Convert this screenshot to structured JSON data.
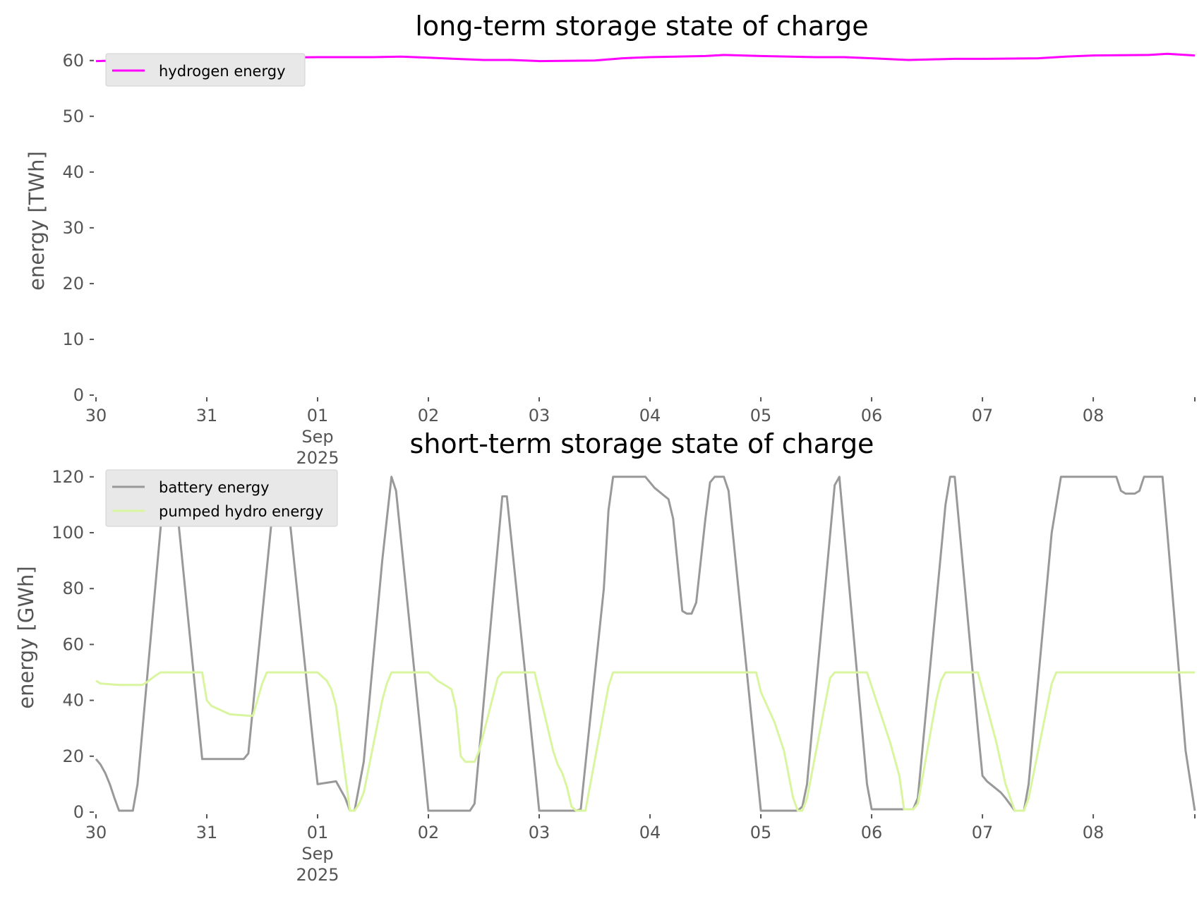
{
  "chart_data": [
    {
      "type": "line",
      "title": "long-term storage state of charge",
      "ylabel": "energy [TWh]",
      "xlabel": "",
      "ylim": [
        0,
        62.5
      ],
      "xlim": [
        "2025-08-30T00:00",
        "2025-09-08T22:00"
      ],
      "yticks": [
        0,
        10,
        20,
        30,
        40,
        50,
        60
      ],
      "xticks": [
        {
          "date": "2025-08-30",
          "label": "30",
          "sub": []
        },
        {
          "date": "2025-08-31",
          "label": "31",
          "sub": []
        },
        {
          "date": "2025-09-01",
          "label": "01",
          "sub": [
            "Sep",
            "2025"
          ]
        },
        {
          "date": "2025-09-02",
          "label": "02",
          "sub": []
        },
        {
          "date": "2025-09-03",
          "label": "03",
          "sub": []
        },
        {
          "date": "2025-09-04",
          "label": "04",
          "sub": []
        },
        {
          "date": "2025-09-05",
          "label": "05",
          "sub": []
        },
        {
          "date": "2025-09-06",
          "label": "06",
          "sub": []
        },
        {
          "date": "2025-09-07",
          "label": "07",
          "sub": []
        },
        {
          "date": "2025-09-08",
          "label": "08",
          "sub": []
        }
      ],
      "grid": false,
      "legend": {
        "position": "top-left"
      },
      "series": [
        {
          "name": "hydrogen energy",
          "color": "#ff00ff",
          "points": [
            [
              "2025-08-30T00:00",
              59.9
            ],
            [
              "2025-08-30T12:00",
              60.2
            ],
            [
              "2025-08-31T00:00",
              60.4
            ],
            [
              "2025-08-31T12:00",
              60.5
            ],
            [
              "2025-09-01T00:00",
              60.6
            ],
            [
              "2025-09-01T12:00",
              60.6
            ],
            [
              "2025-09-01T18:00",
              60.7
            ],
            [
              "2025-09-02T00:00",
              60.5
            ],
            [
              "2025-09-02T12:00",
              60.1
            ],
            [
              "2025-09-02T18:00",
              60.1
            ],
            [
              "2025-09-03T00:00",
              59.9
            ],
            [
              "2025-09-03T12:00",
              60.0
            ],
            [
              "2025-09-03T18:00",
              60.4
            ],
            [
              "2025-09-04T00:00",
              60.6
            ],
            [
              "2025-09-04T12:00",
              60.8
            ],
            [
              "2025-09-04T16:00",
              61.0
            ],
            [
              "2025-09-05T00:00",
              60.8
            ],
            [
              "2025-09-05T12:00",
              60.6
            ],
            [
              "2025-09-05T18:00",
              60.6
            ],
            [
              "2025-09-06T00:00",
              60.4
            ],
            [
              "2025-09-06T08:00",
              60.1
            ],
            [
              "2025-09-06T18:00",
              60.3
            ],
            [
              "2025-09-07T00:00",
              60.3
            ],
            [
              "2025-09-07T12:00",
              60.4
            ],
            [
              "2025-09-07T18:00",
              60.7
            ],
            [
              "2025-09-08T00:00",
              60.9
            ],
            [
              "2025-09-08T12:00",
              61.0
            ],
            [
              "2025-09-08T16:00",
              61.2
            ],
            [
              "2025-09-08T22:00",
              60.9
            ]
          ]
        }
      ]
    },
    {
      "type": "line",
      "title": "short-term storage state of charge",
      "ylabel": "energy [GWh]",
      "xlabel": "",
      "ylim": [
        0,
        125
      ],
      "xlim": [
        "2025-08-30T00:00",
        "2025-09-08T22:00"
      ],
      "yticks": [
        0,
        20,
        40,
        60,
        80,
        100,
        120
      ],
      "xticks": [
        {
          "date": "2025-08-30",
          "label": "30",
          "sub": []
        },
        {
          "date": "2025-08-31",
          "label": "31",
          "sub": []
        },
        {
          "date": "2025-09-01",
          "label": "01",
          "sub": [
            "Sep",
            "2025"
          ]
        },
        {
          "date": "2025-09-02",
          "label": "02",
          "sub": []
        },
        {
          "date": "2025-09-03",
          "label": "03",
          "sub": []
        },
        {
          "date": "2025-09-04",
          "label": "04",
          "sub": []
        },
        {
          "date": "2025-09-05",
          "label": "05",
          "sub": []
        },
        {
          "date": "2025-09-06",
          "label": "06",
          "sub": []
        },
        {
          "date": "2025-09-07",
          "label": "07",
          "sub": []
        },
        {
          "date": "2025-09-08",
          "label": "08",
          "sub": []
        }
      ],
      "grid": false,
      "legend": {
        "position": "top-left"
      },
      "series": [
        {
          "name": "battery energy",
          "color": "#999999",
          "points": [
            [
              "2025-08-30T00:00",
              19
            ],
            [
              "2025-08-30T01:00",
              17
            ],
            [
              "2025-08-30T02:00",
              14
            ],
            [
              "2025-08-30T03:00",
              10
            ],
            [
              "2025-08-30T04:00",
              5
            ],
            [
              "2025-08-30T05:00",
              0.5
            ],
            [
              "2025-08-30T08:00",
              0.5
            ],
            [
              "2025-08-30T09:00",
              10
            ],
            [
              "2025-08-30T15:00",
              120
            ],
            [
              "2025-08-30T17:00",
              118
            ],
            [
              "2025-08-30T23:00",
              19
            ],
            [
              "2025-08-31T08:00",
              19
            ],
            [
              "2025-08-31T09:00",
              21
            ],
            [
              "2025-08-31T15:00",
              120
            ],
            [
              "2025-08-31T17:00",
              120
            ],
            [
              "2025-08-31T23:00",
              25
            ],
            [
              "2025-09-01T00:00",
              10
            ],
            [
              "2025-09-01T04:00",
              11
            ],
            [
              "2025-09-01T06:00",
              5
            ],
            [
              "2025-09-01T07:00",
              0.5
            ],
            [
              "2025-09-01T08:00",
              0.5
            ],
            [
              "2025-09-01T10:00",
              18
            ],
            [
              "2025-09-01T14:00",
              90
            ],
            [
              "2025-09-01T16:00",
              120
            ],
            [
              "2025-09-01T17:00",
              115
            ],
            [
              "2025-09-01T23:00",
              17
            ],
            [
              "2025-09-02T00:00",
              0.5
            ],
            [
              "2025-09-02T09:00",
              0.5
            ],
            [
              "2025-09-02T10:00",
              3
            ],
            [
              "2025-09-02T16:00",
              113
            ],
            [
              "2025-09-02T17:00",
              113
            ],
            [
              "2025-09-02T23:00",
              17
            ],
            [
              "2025-09-03T00:00",
              0.5
            ],
            [
              "2025-09-03T08:00",
              0.5
            ],
            [
              "2025-09-03T09:00",
              1
            ],
            [
              "2025-09-03T14:00",
              80
            ],
            [
              "2025-09-03T15:00",
              108
            ],
            [
              "2025-09-03T16:00",
              120
            ],
            [
              "2025-09-03T23:00",
              120
            ],
            [
              "2025-09-04T01:00",
              116
            ],
            [
              "2025-09-04T04:00",
              112
            ],
            [
              "2025-09-04T05:00",
              105
            ],
            [
              "2025-09-04T07:00",
              72
            ],
            [
              "2025-09-04T08:00",
              71
            ],
            [
              "2025-09-04T09:00",
              71
            ],
            [
              "2025-09-04T10:00",
              75
            ],
            [
              "2025-09-04T12:00",
              105
            ],
            [
              "2025-09-04T13:00",
              118
            ],
            [
              "2025-09-04T14:00",
              120
            ],
            [
              "2025-09-04T16:00",
              120
            ],
            [
              "2025-09-04T17:00",
              115
            ],
            [
              "2025-09-04T23:00",
              17
            ],
            [
              "2025-09-05T00:00",
              0.5
            ],
            [
              "2025-09-05T08:00",
              0.5
            ],
            [
              "2025-09-05T09:00",
              2
            ],
            [
              "2025-09-05T10:00",
              10
            ],
            [
              "2025-09-05T16:00",
              117
            ],
            [
              "2025-09-05T17:00",
              120
            ],
            [
              "2025-09-05T23:00",
              10
            ],
            [
              "2025-09-06T00:00",
              1
            ],
            [
              "2025-09-06T09:00",
              1
            ],
            [
              "2025-09-06T10:00",
              5
            ],
            [
              "2025-09-06T16:00",
              110
            ],
            [
              "2025-09-06T17:00",
              120
            ],
            [
              "2025-09-06T18:00",
              120
            ],
            [
              "2025-09-06T23:00",
              30
            ],
            [
              "2025-09-07T00:00",
              13
            ],
            [
              "2025-09-07T01:00",
              11
            ],
            [
              "2025-09-07T04:00",
              7
            ],
            [
              "2025-09-07T05:00",
              5
            ],
            [
              "2025-09-07T07:00",
              0.5
            ],
            [
              "2025-09-07T09:00",
              0.5
            ],
            [
              "2025-09-07T10:00",
              10
            ],
            [
              "2025-09-07T15:00",
              100
            ],
            [
              "2025-09-07T16:00",
              110
            ],
            [
              "2025-09-07T17:00",
              120
            ],
            [
              "2025-09-08T00:00",
              120
            ],
            [
              "2025-09-08T05:00",
              120
            ],
            [
              "2025-09-08T06:00",
              115
            ],
            [
              "2025-09-08T07:00",
              114
            ],
            [
              "2025-09-08T09:00",
              114
            ],
            [
              "2025-09-08T10:00",
              115
            ],
            [
              "2025-09-08T11:00",
              120
            ],
            [
              "2025-09-08T15:00",
              120
            ],
            [
              "2025-09-08T16:00",
              101
            ],
            [
              "2025-09-08T20:00",
              22
            ],
            [
              "2025-09-08T22:00",
              0.5
            ]
          ]
        },
        {
          "name": "pumped hydro energy",
          "color": "#d9f59f",
          "points": [
            [
              "2025-08-30T00:00",
              47
            ],
            [
              "2025-08-30T01:00",
              46
            ],
            [
              "2025-08-30T05:00",
              45.5
            ],
            [
              "2025-08-30T10:00",
              45.5
            ],
            [
              "2025-08-30T11:00",
              46.5
            ],
            [
              "2025-08-30T13:00",
              49
            ],
            [
              "2025-08-30T14:00",
              50
            ],
            [
              "2025-08-30T23:00",
              50
            ],
            [
              "2025-08-31T00:00",
              40
            ],
            [
              "2025-08-31T01:00",
              38
            ],
            [
              "2025-08-31T05:00",
              35
            ],
            [
              "2025-08-31T09:00",
              34.5
            ],
            [
              "2025-08-31T10:00",
              34.5
            ],
            [
              "2025-08-31T12:00",
              46
            ],
            [
              "2025-08-31T13:00",
              50
            ],
            [
              "2025-09-01T00:00",
              50
            ],
            [
              "2025-09-01T02:00",
              47
            ],
            [
              "2025-09-01T03:00",
              44
            ],
            [
              "2025-09-01T04:00",
              38
            ],
            [
              "2025-09-01T07:00",
              0.5
            ],
            [
              "2025-09-01T08:00",
              0.5
            ],
            [
              "2025-09-01T09:00",
              3
            ],
            [
              "2025-09-01T10:00",
              7
            ],
            [
              "2025-09-01T14:00",
              40
            ],
            [
              "2025-09-01T15:00",
              46
            ],
            [
              "2025-09-01T16:00",
              50
            ],
            [
              "2025-09-02T00:00",
              50
            ],
            [
              "2025-09-02T02:00",
              47
            ],
            [
              "2025-09-02T05:00",
              44
            ],
            [
              "2025-09-02T06:00",
              37
            ],
            [
              "2025-09-02T07:00",
              20
            ],
            [
              "2025-09-02T08:00",
              18
            ],
            [
              "2025-09-02T10:00",
              18
            ],
            [
              "2025-09-02T11:00",
              22
            ],
            [
              "2025-09-02T15:00",
              48
            ],
            [
              "2025-09-02T16:00",
              50
            ],
            [
              "2025-09-02T23:00",
              50
            ],
            [
              "2025-09-03T03:00",
              22
            ],
            [
              "2025-09-03T04:00",
              17
            ],
            [
              "2025-09-03T05:00",
              14
            ],
            [
              "2025-09-03T06:00",
              9
            ],
            [
              "2025-09-03T07:00",
              2
            ],
            [
              "2025-09-03T08:00",
              0.5
            ],
            [
              "2025-09-03T10:00",
              0.5
            ],
            [
              "2025-09-03T15:00",
              45
            ],
            [
              "2025-09-03T16:00",
              50
            ],
            [
              "2025-09-04T23:00",
              50
            ],
            [
              "2025-09-05T00:00",
              43
            ],
            [
              "2025-09-05T03:00",
              32
            ],
            [
              "2025-09-05T05:00",
              22
            ],
            [
              "2025-09-05T07:00",
              5
            ],
            [
              "2025-09-05T08:00",
              0.5
            ],
            [
              "2025-09-05T09:00",
              0.5
            ],
            [
              "2025-09-05T10:00",
              5
            ],
            [
              "2025-09-05T15:00",
              48
            ],
            [
              "2025-09-05T16:00",
              50
            ],
            [
              "2025-09-05T23:00",
              50
            ],
            [
              "2025-09-06T04:00",
              25
            ],
            [
              "2025-09-06T06:00",
              13
            ],
            [
              "2025-09-06T07:00",
              1
            ],
            [
              "2025-09-06T09:00",
              1
            ],
            [
              "2025-09-06T10:00",
              3
            ],
            [
              "2025-09-06T14:00",
              40
            ],
            [
              "2025-09-06T15:00",
              47
            ],
            [
              "2025-09-06T16:00",
              50
            ],
            [
              "2025-09-06T23:00",
              50
            ],
            [
              "2025-09-07T03:00",
              25
            ],
            [
              "2025-09-07T05:00",
              10
            ],
            [
              "2025-09-07T07:00",
              0.5
            ],
            [
              "2025-09-07T09:00",
              0.5
            ],
            [
              "2025-09-07T10:00",
              5
            ],
            [
              "2025-09-07T15:00",
              46
            ],
            [
              "2025-09-07T16:00",
              50
            ],
            [
              "2025-09-08T22:00",
              50
            ]
          ]
        }
      ]
    }
  ]
}
